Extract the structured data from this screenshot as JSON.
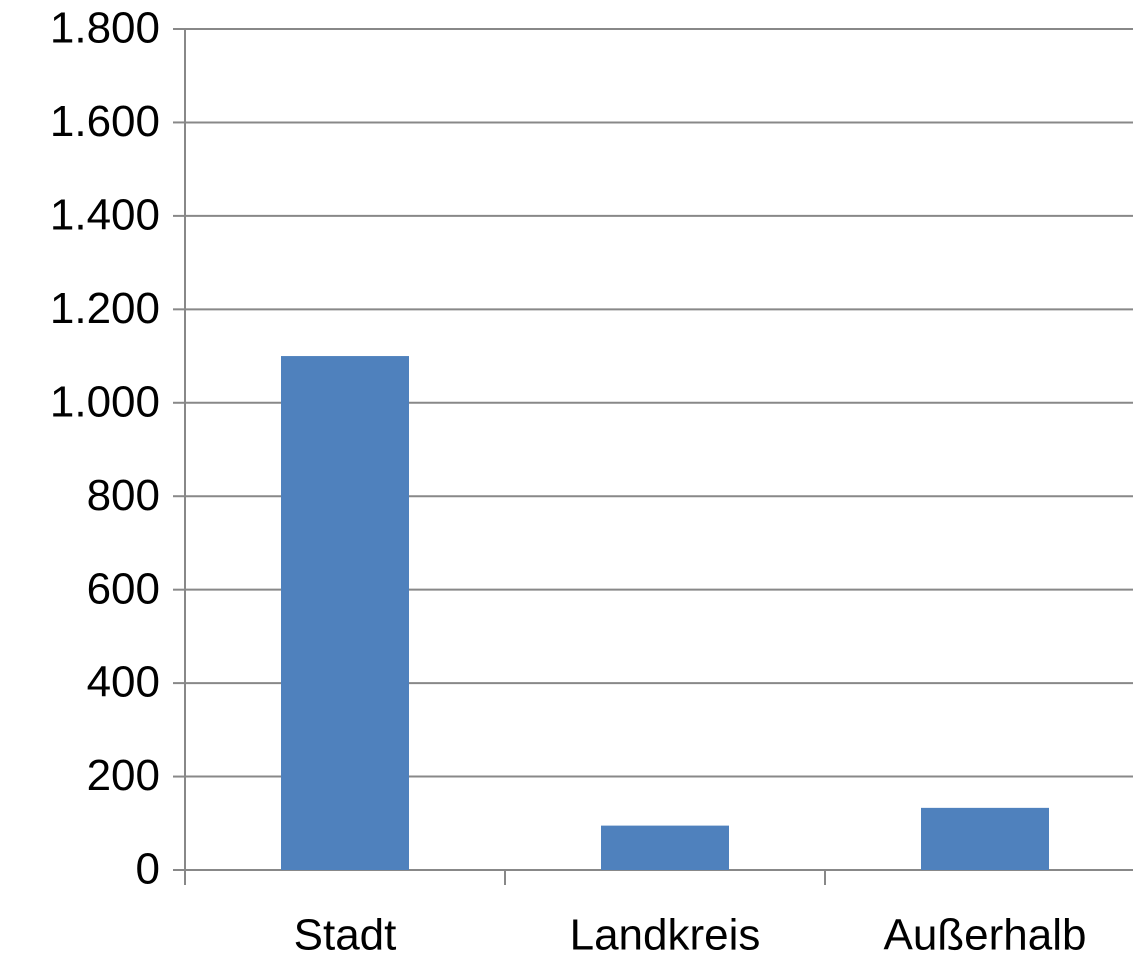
{
  "chart_data": {
    "type": "bar",
    "categories": [
      "Stadt",
      "Landkreis",
      "Außerhalb"
    ],
    "values": [
      1100,
      95,
      133
    ],
    "color": "#4f81bd",
    "ylim": [
      0,
      1800
    ],
    "yticks": [
      0,
      200,
      400,
      600,
      800,
      {
        "value": 1000,
        "label": "1.000"
      },
      {
        "value": 1200,
        "label": "1.200"
      },
      {
        "value": 1400,
        "label": "1.400"
      },
      {
        "value": 1600,
        "label": "1.600"
      },
      {
        "value": 1800,
        "label": "1.800"
      }
    ],
    "grid": true
  }
}
